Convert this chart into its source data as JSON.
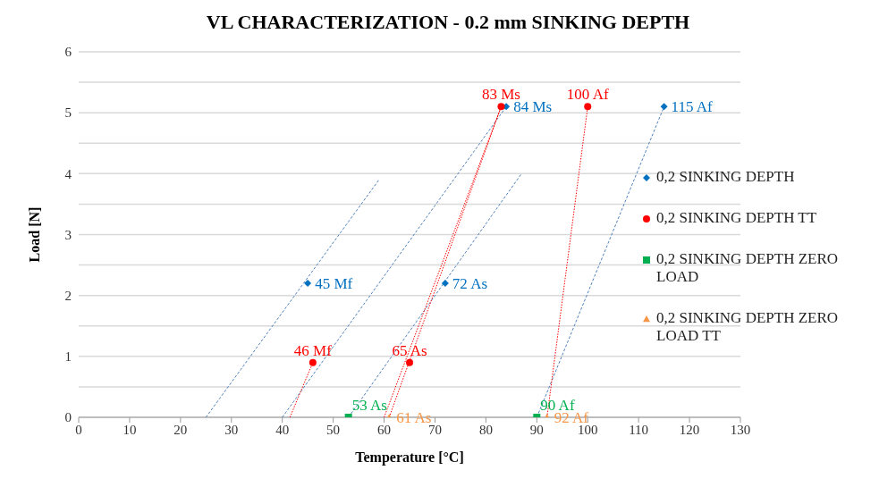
{
  "chart_data": {
    "type": "scatter",
    "title": "VL CHARACTERIZATION -  0.2 mm SINKING DEPTH",
    "xlabel": "Temperature [°C]",
    "ylabel": "Load [N]",
    "xlim": [
      0,
      130
    ],
    "xticks": [
      0,
      10,
      20,
      30,
      40,
      50,
      60,
      70,
      80,
      90,
      100,
      110,
      120,
      130
    ],
    "ylim": [
      0,
      6
    ],
    "yticks": [
      0,
      {
        "value": 0.5,
        "label": null
      },
      1,
      {
        "value": 1.5,
        "label": null
      },
      2,
      {
        "value": 2.5,
        "label": null
      },
      3,
      {
        "value": 3.5,
        "label": null
      },
      4,
      {
        "value": 4.5,
        "label": null
      },
      5,
      {
        "value": 5.5,
        "label": null
      },
      6
    ],
    "grid": "y",
    "legend": "right",
    "series": [
      {
        "type": "line",
        "color": "#4f81bd",
        "line_style": "dashed",
        "marker": "none",
        "x": [
          25,
          59
        ],
        "values": [
          0,
          3.9
        ]
      },
      {
        "type": "line",
        "color": "#4f81bd",
        "line_style": "dashed",
        "marker": "none",
        "x": [
          40,
          84
        ],
        "values": [
          0,
          5.1
        ]
      },
      {
        "type": "line",
        "color": "#4f81bd",
        "line_style": "dashed",
        "marker": "none",
        "x": [
          53,
          87
        ],
        "values": [
          0,
          4
        ]
      },
      {
        "type": "line",
        "color": "#4f81bd",
        "line_style": "dashed",
        "marker": "none",
        "x": [
          90,
          115
        ],
        "values": [
          0,
          5.1
        ]
      },
      {
        "type": "line",
        "color": "#ff0000",
        "line_style": "dotted",
        "marker": "none",
        "x": [
          41.5,
          46
        ],
        "values": [
          0,
          0.9
        ]
      },
      {
        "type": "line",
        "color": "#ff0000",
        "line_style": "dotted",
        "marker": "none",
        "x": [
          60,
          83
        ],
        "values": [
          0,
          5.1
        ]
      },
      {
        "type": "line",
        "color": "#ff0000",
        "line_style": "dotted",
        "marker": "none",
        "x": [
          61,
          83
        ],
        "values": [
          0,
          5.1
        ]
      },
      {
        "type": "line",
        "color": "#ff0000",
        "line_style": "dotted",
        "marker": "none",
        "x": [
          92,
          100
        ],
        "values": [
          0,
          5.1
        ]
      },
      {
        "name": "0,2 SINKING DEPTH",
        "color": "#0070c0",
        "marker": "diamond",
        "x": [
          45,
          84,
          72,
          115
        ],
        "values": [
          2.2,
          5.1,
          2.2,
          5.1
        ]
      },
      {
        "name": "0,2 SINKING DEPTH TT",
        "color": "#ff0000",
        "marker": "circle",
        "x": [
          46,
          83,
          65,
          100
        ],
        "values": [
          0.9,
          5.1,
          0.9,
          5.1
        ]
      },
      {
        "name": "0,2 SINKING DEPTH ZERO LOAD",
        "color": "#00b050",
        "marker": "square",
        "x": [
          53,
          90
        ],
        "values": [
          0,
          0
        ]
      },
      {
        "name": "0,2 SINKING DEPTH ZERO LOAD TT",
        "color": "#f79646",
        "marker": "triangle",
        "x": [
          61,
          92
        ],
        "values": [
          0,
          0
        ]
      }
    ],
    "annotations": [
      {
        "text": "45 Mf",
        "x": 45,
        "y": 2.2
      },
      {
        "text": "84 Ms",
        "x": 84,
        "y": 5.1
      },
      {
        "text": "72 As",
        "x": 72,
        "y": 2.2
      },
      {
        "text": "115 Af",
        "x": 115,
        "y": 5.1
      },
      {
        "text": "46 Mf",
        "x": 46,
        "y": 0.9
      },
      {
        "text": "83 Ms",
        "x": 83,
        "y": 5.1
      },
      {
        "text": "65 As",
        "x": 65,
        "y": 0.9
      },
      {
        "text": "100 Af",
        "x": 100,
        "y": 5.1
      },
      {
        "text": "53 As",
        "x": 53,
        "y": 0
      },
      {
        "text": "90 Af",
        "x": 90,
        "y": 0
      },
      {
        "text": "61 As",
        "x": 61,
        "y": 0
      },
      {
        "text": "92 Af",
        "x": 92,
        "y": 0
      }
    ]
  }
}
